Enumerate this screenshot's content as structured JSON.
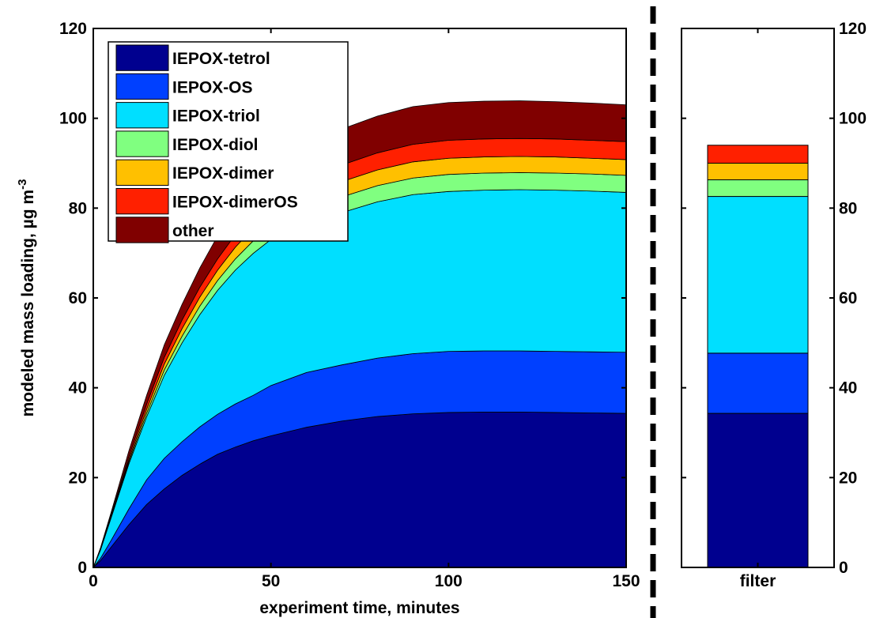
{
  "chart_data": [
    {
      "type": "area",
      "stacked": true,
      "xlabel": "experiment time, minutes",
      "ylabel": "modeled mass loading,  µg m",
      "ylabel_superscript": "-3",
      "xlim": [
        0,
        150
      ],
      "ylim": [
        0,
        120
      ],
      "xticks": [
        0,
        50,
        100,
        150
      ],
      "yticks": [
        0,
        20,
        40,
        60,
        80,
        100,
        120
      ],
      "grid": false,
      "legend_position": "top-left",
      "x": [
        0,
        2,
        5,
        10,
        15,
        20,
        25,
        30,
        35,
        40,
        45,
        50,
        60,
        70,
        80,
        90,
        100,
        110,
        120,
        130,
        140,
        150
      ],
      "series": [
        {
          "name": "IEPOX-tetrol",
          "color": "#00008f",
          "values": [
            0,
            1.5,
            4.5,
            9.5,
            14,
            17.5,
            20.5,
            23,
            25.2,
            26.8,
            28.2,
            29.3,
            31.2,
            32.6,
            33.6,
            34.2,
            34.5,
            34.6,
            34.6,
            34.5,
            34.4,
            34.3
          ]
        },
        {
          "name": "IEPOX-OS",
          "color": "#0040ff",
          "values": [
            0,
            0.5,
            1.5,
            3.5,
            5.5,
            6.8,
            7.5,
            8.3,
            8.9,
            9.6,
            10.1,
            11.2,
            12.2,
            12.5,
            13,
            13.4,
            13.6,
            13.6,
            13.6,
            13.6,
            13.6,
            13.6
          ]
        },
        {
          "name": "IEPOX-triol",
          "color": "#00dfff",
          "values": [
            0,
            1.8,
            5,
            10,
            14,
            18.5,
            22,
            25,
            27.6,
            29.8,
            31.6,
            32.5,
            33.3,
            33.9,
            34.8,
            35.4,
            35.6,
            35.8,
            35.9,
            35.9,
            35.8,
            35.6
          ]
        },
        {
          "name": "IEPOX-diol",
          "color": "#80ff80",
          "values": [
            0,
            0.1,
            0.2,
            0.5,
            0.8,
            1.2,
            1.5,
            1.9,
            2.2,
            2.5,
            2.8,
            3,
            3.3,
            3.5,
            3.6,
            3.7,
            3.8,
            3.8,
            3.8,
            3.8,
            3.8,
            3.8
          ]
        },
        {
          "name": "IEPOX-dimer",
          "color": "#ffc000",
          "values": [
            0,
            0.1,
            0.2,
            0.5,
            0.9,
            1.3,
            1.7,
            2,
            2.3,
            2.6,
            2.8,
            3,
            3.2,
            3.4,
            3.5,
            3.6,
            3.6,
            3.6,
            3.6,
            3.6,
            3.5,
            3.5
          ]
        },
        {
          "name": "IEPOX-dimerOS",
          "color": "#ff2000",
          "values": [
            0,
            0.1,
            0.3,
            0.7,
            1.1,
            1.5,
            1.9,
            2.2,
            2.5,
            2.8,
            3,
            3.2,
            3.5,
            3.7,
            3.8,
            3.9,
            4,
            4,
            4,
            4,
            4,
            4
          ]
        },
        {
          "name": "other",
          "color": "#800000",
          "values": [
            0,
            0.2,
            0.5,
            1.2,
            2,
            2.8,
            3.5,
            4.3,
            5.1,
            5.8,
            6.4,
            6.9,
            7.6,
            8,
            8.2,
            8.4,
            8.4,
            8.4,
            8.4,
            8.3,
            8.3,
            8.2
          ]
        }
      ]
    },
    {
      "type": "bar",
      "stacked": true,
      "categories": [
        "filter"
      ],
      "ylim": [
        0,
        120
      ],
      "yticks": [
        0,
        20,
        40,
        60,
        80,
        100,
        120
      ],
      "y_axis_side": "right",
      "series": [
        {
          "name": "IEPOX-tetrol",
          "color": "#00008f",
          "values": [
            34.3
          ]
        },
        {
          "name": "IEPOX-OS",
          "color": "#0040ff",
          "values": [
            13.4
          ]
        },
        {
          "name": "IEPOX-triol",
          "color": "#00dfff",
          "values": [
            34.9
          ]
        },
        {
          "name": "IEPOX-diol",
          "color": "#80ff80",
          "values": [
            3.7
          ]
        },
        {
          "name": "IEPOX-dimer",
          "color": "#ffc000",
          "values": [
            3.7
          ]
        },
        {
          "name": "IEPOX-dimerOS",
          "color": "#ff2000",
          "values": [
            4
          ]
        }
      ]
    }
  ]
}
